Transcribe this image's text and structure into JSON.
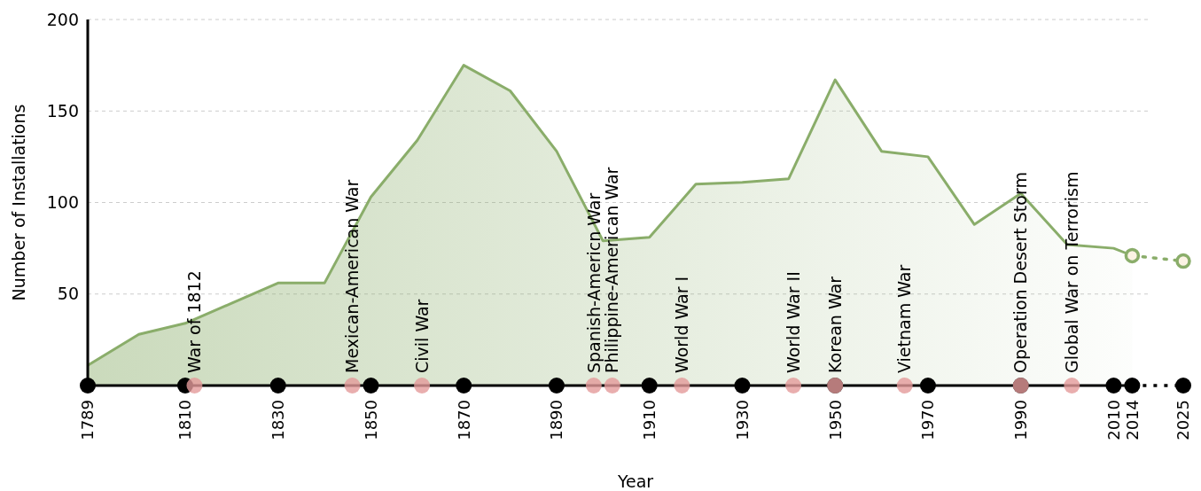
{
  "chart_data": {
    "type": "area",
    "xlabel": "Year",
    "ylabel": "Number of Installations",
    "xlim": [
      1789,
      2025
    ],
    "xticks": [
      1789,
      1810,
      1830,
      1850,
      1870,
      1890,
      1910,
      1930,
      1950,
      1970,
      1990,
      2010,
      2014,
      2025
    ],
    "ylim": [
      0,
      200
    ],
    "yticks": [
      50,
      100,
      150,
      200
    ],
    "grid": "y",
    "series": [
      {
        "color": "#8aad6a",
        "x": [
          1789,
          1800,
          1810,
          1820,
          1830,
          1840,
          1850,
          1860,
          1870,
          1880,
          1890,
          1900,
          1910,
          1920,
          1930,
          1940,
          1950,
          1960,
          1970,
          1980,
          1990,
          2000,
          2010,
          2014
        ],
        "values": [
          11,
          28,
          34,
          45,
          56,
          56,
          103,
          134,
          175,
          161,
          128,
          79,
          81,
          110,
          111,
          113,
          167,
          128,
          125,
          88,
          105,
          77,
          75,
          71
        ]
      },
      {
        "type": "line",
        "color": "#8aad6a",
        "line_style": "dotted",
        "marker": "circle",
        "x": [
          2014,
          2025
        ],
        "values": [
          71,
          68
        ]
      },
      {
        "type": "scatter",
        "color": "#e39a9a",
        "marker": "circle",
        "x": [
          1812,
          1846,
          1861,
          1898,
          1902,
          1917,
          1941,
          1950,
          1965,
          1990,
          2001
        ],
        "values": [
          0,
          0,
          0,
          0,
          0,
          0,
          0,
          0,
          0,
          0,
          0
        ]
      }
    ],
    "annotations": [
      {
        "text": "War of 1812",
        "x": 1812,
        "y": 0
      },
      {
        "text": "Mexican-American War",
        "x": 1846,
        "y": 0
      },
      {
        "text": "Civil War",
        "x": 1861,
        "y": 0
      },
      {
        "text": "Spanish-Americn War",
        "x": 1898,
        "y": 0
      },
      {
        "text": "Philippine-American War",
        "x": 1902,
        "y": 0
      },
      {
        "text": "World War I",
        "x": 1917,
        "y": 0
      },
      {
        "text": "World War II",
        "x": 1941,
        "y": 0
      },
      {
        "text": "Korean War",
        "x": 1950,
        "y": 0
      },
      {
        "text": "Vietnam War",
        "x": 1965,
        "y": 0
      },
      {
        "text": "Operation Desert Storm",
        "x": 1990,
        "y": 0
      },
      {
        "text": "Global War on Terrorism",
        "x": 2001,
        "y": 0
      }
    ]
  }
}
